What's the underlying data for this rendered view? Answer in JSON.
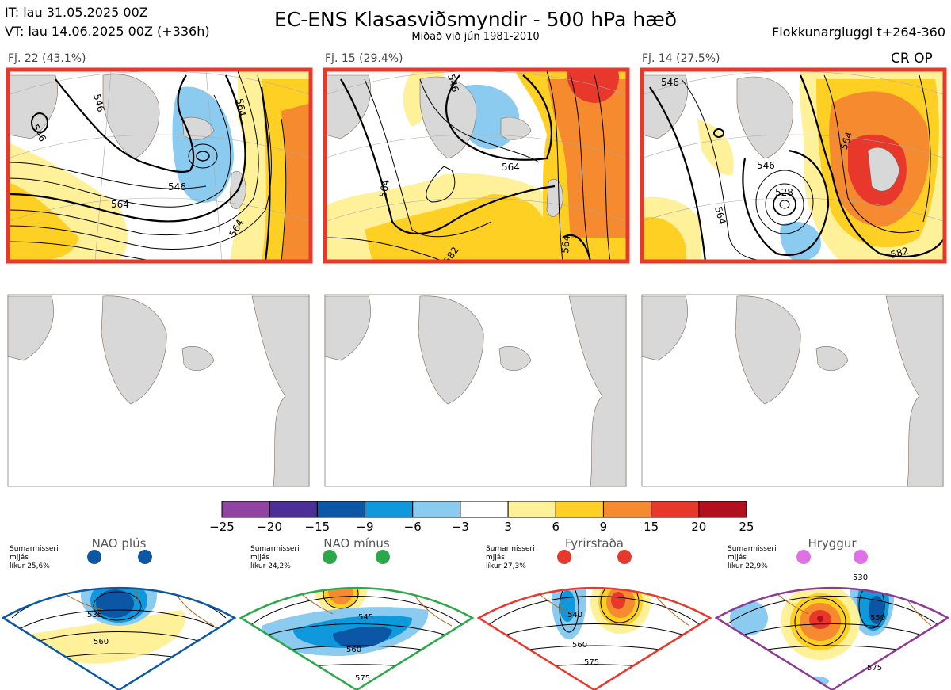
{
  "header": {
    "it_line": "IT: lau 31.05.2025 00Z",
    "vt_line": "VT: lau 14.06.2025 00Z  (+336h)",
    "title": "EC-ENS Klasasviðsmyndir - 500 hPa hæð",
    "subtitle": "Miðað við jún 1981-2010",
    "window_label": "Flokkunargluggi t+264-360"
  },
  "corner_tag": "CR OP",
  "panels": [
    {
      "label": "Fj. 22 (43.1%)",
      "contours": [
        "546",
        "546",
        "564",
        "564",
        "564",
        "546"
      ]
    },
    {
      "label": "Fj. 15 (29.4%)",
      "contours": [
        "546",
        "564",
        "564",
        "564",
        "582"
      ]
    },
    {
      "label": "Fj. 14 (27.5%)",
      "contours": [
        "546",
        "546",
        "528",
        "564",
        "564",
        "582"
      ]
    }
  ],
  "colorbar": {
    "ticks": [
      "−25",
      "−20",
      "−15",
      "−9",
      "−6",
      "−3",
      "3",
      "6",
      "9",
      "15",
      "20",
      "25"
    ],
    "colors": [
      "#8e44a0",
      "#4b2e96",
      "#0b57a6",
      "#0f98dc",
      "#8ccbf0",
      "#ffffff",
      "#fff19a",
      "#fdd023",
      "#f58a2e",
      "#e8372b",
      "#b3101d"
    ]
  },
  "regimes": [
    {
      "name": "NAO plús",
      "stat_line1": "Sumarmisseri",
      "stat_line2": "mjjás",
      "stat_line3": "líkur 25,6%",
      "color": "#0b57a6",
      "contours": [
        "535",
        "560"
      ]
    },
    {
      "name": "NAO mínus",
      "stat_line1": "Sumarmisseri",
      "stat_line2": "mjjás",
      "stat_line3": "líkur 24,2%",
      "color": "#2aa84a",
      "contours": [
        "545",
        "560",
        "575"
      ]
    },
    {
      "name": "Fyrirstaða",
      "stat_line1": "Sumarmisseri",
      "stat_line2": "mjjás",
      "stat_line3": "líkur 27,3%",
      "color": "#e8372b",
      "contours": [
        "540",
        "560",
        "575"
      ]
    },
    {
      "name": "Hryggur",
      "stat_line1": "Sumarmisseri",
      "stat_line2": "mjjás",
      "stat_line3": "líkur 22,9%",
      "color": "#8e3a94",
      "contours": [
        "530",
        "550",
        "575"
      ]
    }
  ]
}
